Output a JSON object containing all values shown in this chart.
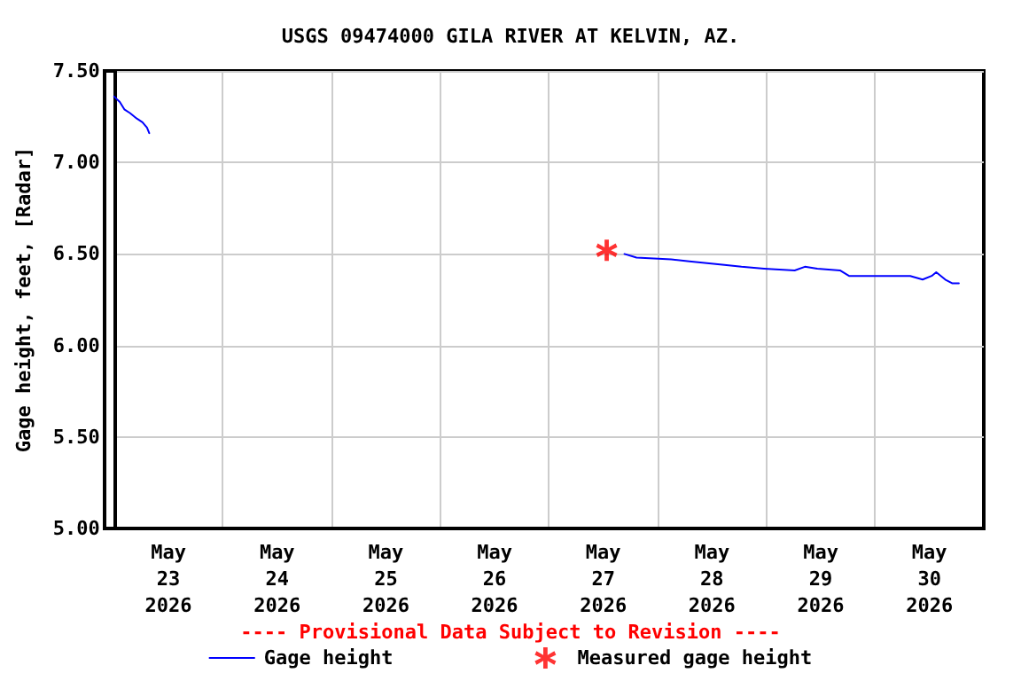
{
  "chart_data": {
    "type": "line",
    "title": "USGS 09474000 GILA RIVER AT KELVIN, AZ.",
    "ylabel": "Gage height, feet, [Radar]",
    "annotations": [
      "---- Provisional Data Subject to Revision ----"
    ],
    "xlim": [
      "2026-05-23",
      "2026-05-31"
    ],
    "xticks": [
      {
        "value": "2026-05-24",
        "label": null
      },
      {
        "value": "2026-05-25",
        "label": null
      },
      {
        "value": "2026-05-26",
        "label": null
      },
      {
        "value": "2026-05-27",
        "label": null
      },
      {
        "value": "2026-05-28",
        "label": null
      },
      {
        "value": "2026-05-29",
        "label": null
      },
      {
        "value": "2026-05-30",
        "label": null
      },
      {
        "value": "2026-05-23T12:00",
        "label": "May\n23\n2026"
      },
      {
        "value": "2026-05-24T12:00",
        "label": "May\n24\n2026"
      },
      {
        "value": "2026-05-25T12:00",
        "label": "May\n25\n2026"
      },
      {
        "value": "2026-05-26T12:00",
        "label": "May\n26\n2026"
      },
      {
        "value": "2026-05-27T12:00",
        "label": "May\n27\n2026"
      },
      {
        "value": "2026-05-28T12:00",
        "label": "May\n28\n2026"
      },
      {
        "value": "2026-05-29T12:00",
        "label": "May\n29\n2026"
      },
      {
        "value": "2026-05-30T12:00",
        "label": "May\n30\n2026"
      }
    ],
    "ylim": [
      5,
      7.5
    ],
    "yticks": [
      {
        "value": 5,
        "label": "5.00"
      },
      {
        "value": 5.5,
        "label": "5.50"
      },
      {
        "value": 6,
        "label": "6.00"
      },
      {
        "value": 6.5,
        "label": "6.50"
      },
      {
        "value": 7,
        "label": "7.00"
      },
      {
        "value": 7.5,
        "label": "7.50"
      }
    ],
    "grid": true,
    "legend": "bottom",
    "series": [
      {
        "name": "Gage height",
        "color": "#0000ff",
        "marker": "none",
        "line_style": "solid",
        "x": [
          "2026-05-23T00:00",
          "2026-05-23T01:15",
          "2026-05-23T02:15",
          "2026-05-23T03:30",
          "2026-05-23T05:00",
          "2026-05-23T06:15",
          "2026-05-23T07:15",
          "2026-05-23T07:45",
          "2026-05-25T12:00",
          "2026-05-27T12:45",
          "2026-05-27T16:40",
          "2026-05-27T19:20",
          "2026-05-28T03:00",
          "2026-05-28T07:00",
          "2026-05-28T14:45",
          "2026-05-28T18:30",
          "2026-05-28T23:30",
          "2026-05-29T06:15",
          "2026-05-29T08:30",
          "2026-05-29T11:15",
          "2026-05-29T16:15",
          "2026-05-29T18:15",
          "2026-05-30T00:00",
          "2026-05-30T07:45",
          "2026-05-30T10:30",
          "2026-05-30T12:30",
          "2026-05-30T13:30",
          "2026-05-30T15:30",
          "2026-05-30T17:00",
          "2026-05-30T18:30"
        ],
        "values": [
          7.36,
          7.33,
          7.29,
          7.27,
          7.24,
          7.22,
          7.19,
          7.16,
          null,
          null,
          6.5,
          6.48,
          6.47,
          6.46,
          6.44,
          6.43,
          6.42,
          6.41,
          6.43,
          6.42,
          6.41,
          6.38,
          6.38,
          6.38,
          6.36,
          6.38,
          6.4,
          6.36,
          6.34,
          6.34
        ]
      },
      {
        "name": "Measured gage height",
        "type": "scatter",
        "color": "#ff0000",
        "marker": "star",
        "x": [
          "2026-05-27T12:45"
        ],
        "values": [
          6.52
        ]
      }
    ]
  }
}
